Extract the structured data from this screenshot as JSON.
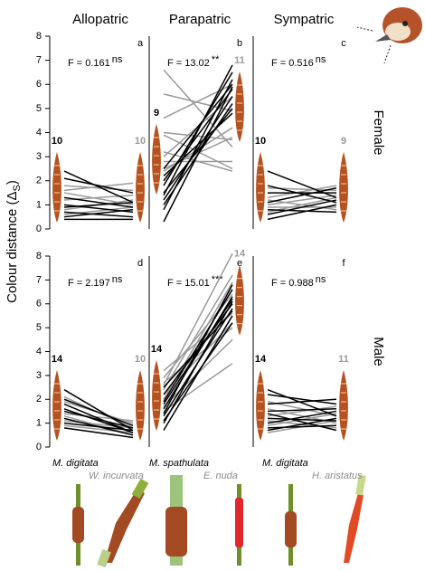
{
  "figure": {
    "columns": [
      "Allopatric",
      "Parapatric",
      "Sympatric"
    ],
    "rows": [
      "Female",
      "Male"
    ],
    "ylabel": [
      "Colour distance (Δ",
      "S",
      ")"
    ],
    "species": [
      {
        "name": "M. digitata",
        "color": "#000000"
      },
      {
        "name": "W. incurvata",
        "color": "#8c8c8c"
      },
      {
        "name": "M. spathulata",
        "color": "#000000"
      },
      {
        "name": "E. nuda",
        "color": "#8c8c8c"
      },
      {
        "name": "M. digitata",
        "color": "#000000"
      },
      {
        "name": "H. aristatus",
        "color": "#8c8c8c"
      }
    ]
  },
  "chart_data": [
    {
      "type": "slope",
      "letter": "a",
      "stat": "F = 0.161",
      "sig": "ns",
      "n_left": 10,
      "n_right": 10,
      "ylim": [
        0,
        8
      ],
      "yticks": [
        0,
        1,
        2,
        3,
        4,
        5,
        6,
        7,
        8
      ],
      "series": [
        {
          "color": "#000000",
          "values": [
            [
              2.4,
              1.1
            ],
            [
              2.1,
              1.5
            ],
            [
              1.3,
              0.9
            ],
            [
              0.9,
              1.1
            ],
            [
              0.5,
              0.8
            ],
            [
              0.4,
              0.4
            ],
            [
              0.7,
              0.5
            ],
            [
              1.0,
              0.7
            ]
          ]
        },
        {
          "color": "#9a9a9a",
          "values": [
            [
              1.8,
              1.6
            ],
            [
              1.6,
              1.9
            ],
            [
              1.2,
              1.4
            ],
            [
              0.8,
              1.2
            ],
            [
              1.5,
              1.0
            ],
            [
              0.6,
              0.9
            ]
          ]
        }
      ]
    },
    {
      "type": "slope",
      "letter": "b",
      "stat": "F = 13.02",
      "sig": "**",
      "n_left": 9,
      "n_right": 11,
      "ylim": [
        0,
        8
      ],
      "series": [
        {
          "color": "#000000",
          "values": [
            [
              0.3,
              5.9
            ],
            [
              0.8,
              6.2
            ],
            [
              1.2,
              5.5
            ],
            [
              1.5,
              5.0
            ],
            [
              1.8,
              6.5
            ],
            [
              2.0,
              5.8
            ],
            [
              2.2,
              4.8
            ],
            [
              2.5,
              6.0
            ],
            [
              1.0,
              5.2
            ],
            [
              1.4,
              6.8
            ]
          ]
        },
        {
          "color": "#9a9a9a",
          "values": [
            [
              4.6,
              6.0
            ],
            [
              5.6,
              4.9
            ],
            [
              4.0,
              3.7
            ],
            [
              3.2,
              2.4
            ],
            [
              2.5,
              3.8
            ],
            [
              2.4,
              4.2
            ],
            [
              2.8,
              2.8
            ],
            [
              6.6,
              3.4
            ],
            [
              3.0,
              5.5
            ],
            [
              3.9,
              2.5
            ]
          ]
        }
      ]
    },
    {
      "type": "slope",
      "letter": "c",
      "stat": "F = 0.516",
      "sig": "ns",
      "n_left": 10,
      "n_right": 9,
      "ylim": [
        0,
        8
      ],
      "series": [
        {
          "color": "#000000",
          "values": [
            [
              2.4,
              1.3
            ],
            [
              1.8,
              1.1
            ],
            [
              1.5,
              1.5
            ],
            [
              1.1,
              1.7
            ],
            [
              0.8,
              0.7
            ],
            [
              0.6,
              1.2
            ],
            [
              0.4,
              1.0
            ]
          ]
        },
        {
          "color": "#9a9a9a",
          "values": [
            [
              1.7,
              1.6
            ],
            [
              1.3,
              1.8
            ],
            [
              1.0,
              1.4
            ],
            [
              0.9,
              0.9
            ],
            [
              0.7,
              1.3
            ],
            [
              1.2,
              0.8
            ]
          ]
        }
      ]
    },
    {
      "type": "slope",
      "letter": "d",
      "stat": "F = 2.197",
      "sig": "ns",
      "n_left": 14,
      "n_right": 10,
      "ylim": [
        0,
        8
      ],
      "yticks": [
        0,
        1,
        2,
        3,
        4,
        5,
        6,
        7,
        8
      ],
      "series": [
        {
          "color": "#000000",
          "values": [
            [
              2.4,
              0.7
            ],
            [
              2.0,
              0.9
            ],
            [
              1.8,
              0.6
            ],
            [
              1.5,
              0.8
            ],
            [
              1.2,
              0.5
            ],
            [
              1.0,
              0.7
            ],
            [
              0.8,
              0.4
            ],
            [
              1.6,
              0.6
            ]
          ]
        },
        {
          "color": "#9a9a9a",
          "values": [
            [
              1.9,
              1.0
            ],
            [
              1.4,
              1.1
            ],
            [
              1.1,
              0.8
            ],
            [
              0.9,
              0.6
            ],
            [
              1.3,
              0.5
            ],
            [
              2.1,
              0.8
            ]
          ]
        }
      ]
    },
    {
      "type": "slope",
      "letter": "e",
      "stat": "F = 15.01",
      "sig": "***",
      "n_left": 14,
      "n_right": 14,
      "ylim": [
        0,
        8
      ],
      "series": [
        {
          "color": "#000000",
          "values": [
            [
              0.7,
              5.5
            ],
            [
              1.0,
              6.1
            ],
            [
              1.3,
              5.8
            ],
            [
              1.6,
              6.3
            ],
            [
              1.9,
              6.6
            ],
            [
              2.2,
              6.0
            ],
            [
              1.4,
              6.8
            ],
            [
              2.5,
              5.7
            ],
            [
              1.1,
              5.2
            ],
            [
              1.8,
              6.2
            ]
          ]
        },
        {
          "color": "#9a9a9a",
          "values": [
            [
              2.6,
              8.1
            ],
            [
              2.4,
              7.2
            ],
            [
              2.0,
              6.9
            ],
            [
              3.2,
              5.6
            ],
            [
              1.7,
              4.5
            ],
            [
              2.2,
              5.2
            ],
            [
              2.9,
              6.4
            ],
            [
              1.5,
              3.5
            ],
            [
              2.7,
              5.0
            ]
          ]
        }
      ]
    },
    {
      "type": "slope",
      "letter": "f",
      "stat": "F = 0.988",
      "sig": "ns",
      "n_left": 14,
      "n_right": 11,
      "ylim": [
        0,
        8
      ],
      "series": [
        {
          "color": "#000000",
          "values": [
            [
              2.4,
              1.3
            ],
            [
              2.2,
              1.8
            ],
            [
              1.8,
              2.0
            ],
            [
              1.5,
              1.6
            ],
            [
              1.2,
              1.1
            ],
            [
              1.0,
              1.5
            ],
            [
              0.8,
              0.9
            ],
            [
              0.7,
              1.2
            ],
            [
              1.4,
              0.7
            ]
          ]
        },
        {
          "color": "#9a9a9a",
          "values": [
            [
              1.9,
              1.3
            ],
            [
              1.3,
              1.7
            ],
            [
              1.1,
              0.8
            ],
            [
              0.9,
              1.4
            ],
            [
              1.6,
              1.0
            ],
            [
              0.6,
              1.1
            ]
          ]
        }
      ]
    }
  ]
}
